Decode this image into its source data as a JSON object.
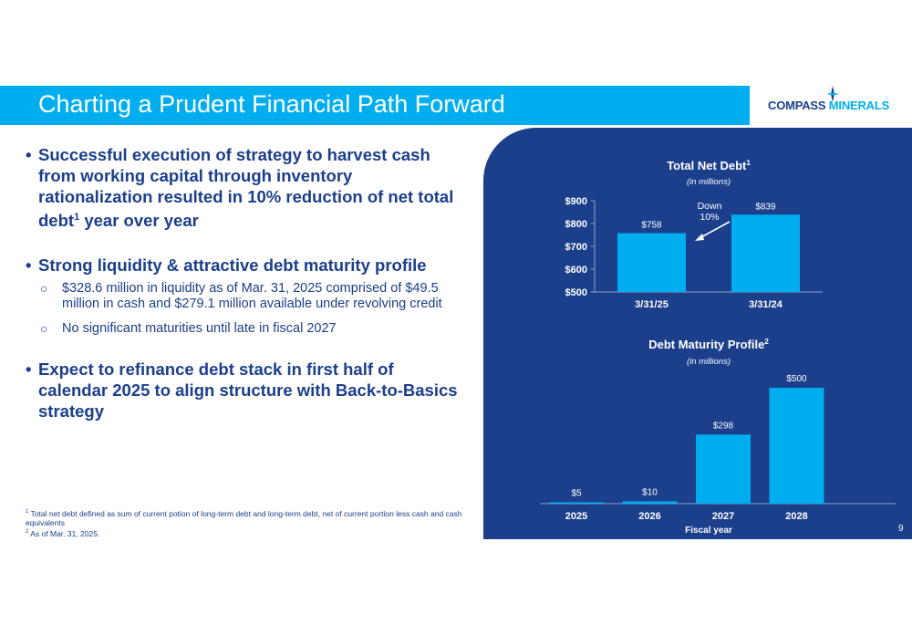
{
  "header": {
    "title": "Charting a Prudent Financial Path Forward",
    "logo_word1": "COMPASS",
    "logo_word2": "MINERALS",
    "colors": {
      "bar": "#00aeef",
      "navy": "#1b3f8b"
    }
  },
  "bullets": [
    {
      "text": "Successful execution of strategy to harvest cash from working capital through inventory rationalization resulted in 10% reduction of net total debt",
      "sup": "1",
      "tail": " year over year"
    },
    {
      "text": "Strong liquidity & attractive debt maturity profile",
      "subs": [
        "$328.6 million in liquidity as of Mar. 31, 2025 comprised of $49.5 million in cash and $279.1 million available under revolving credit",
        "No significant maturities until late in fiscal 2027"
      ]
    },
    {
      "text": "Expect to refinance debt stack in first half of calendar 2025 to align structure with Back-to-Basics strategy"
    }
  ],
  "footnotes": {
    "f1_mark": "1",
    "f1": " Total net debt defined as sum of current potion of long-term debt and long-term debt, net of current portion less cash and cash equivalents",
    "f2_mark": "2",
    "f2": " As of Mar. 31, 2025."
  },
  "page_number": "9",
  "chart_data": [
    {
      "type": "bar",
      "title": "Total Net Debt",
      "title_sup": "1",
      "subtitle": "(in millions)",
      "categories": [
        "3/31/25",
        "3/31/24"
      ],
      "values": [
        758,
        839
      ],
      "value_labels": [
        "$758",
        "$839"
      ],
      "ylim": [
        500,
        900
      ],
      "yticks": [
        500,
        600,
        700,
        800,
        900
      ],
      "ytick_labels": [
        "$500",
        "$600",
        "$700",
        "$800",
        "$900"
      ],
      "annotation_line1": "Down",
      "annotation_line2": "10%",
      "bar_color": "#00aeef"
    },
    {
      "type": "bar",
      "title": "Debt Maturity Profile",
      "title_sup": "2",
      "subtitle": "(in millions)",
      "xlabel": "Fiscal year",
      "categories": [
        "2025",
        "2026",
        "2027",
        "2028"
      ],
      "values": [
        5,
        10,
        298,
        500
      ],
      "value_labels": [
        "$5",
        "$10",
        "$298",
        "$500"
      ],
      "ylim": [
        0,
        500
      ],
      "bar_color": "#00aeef"
    }
  ]
}
